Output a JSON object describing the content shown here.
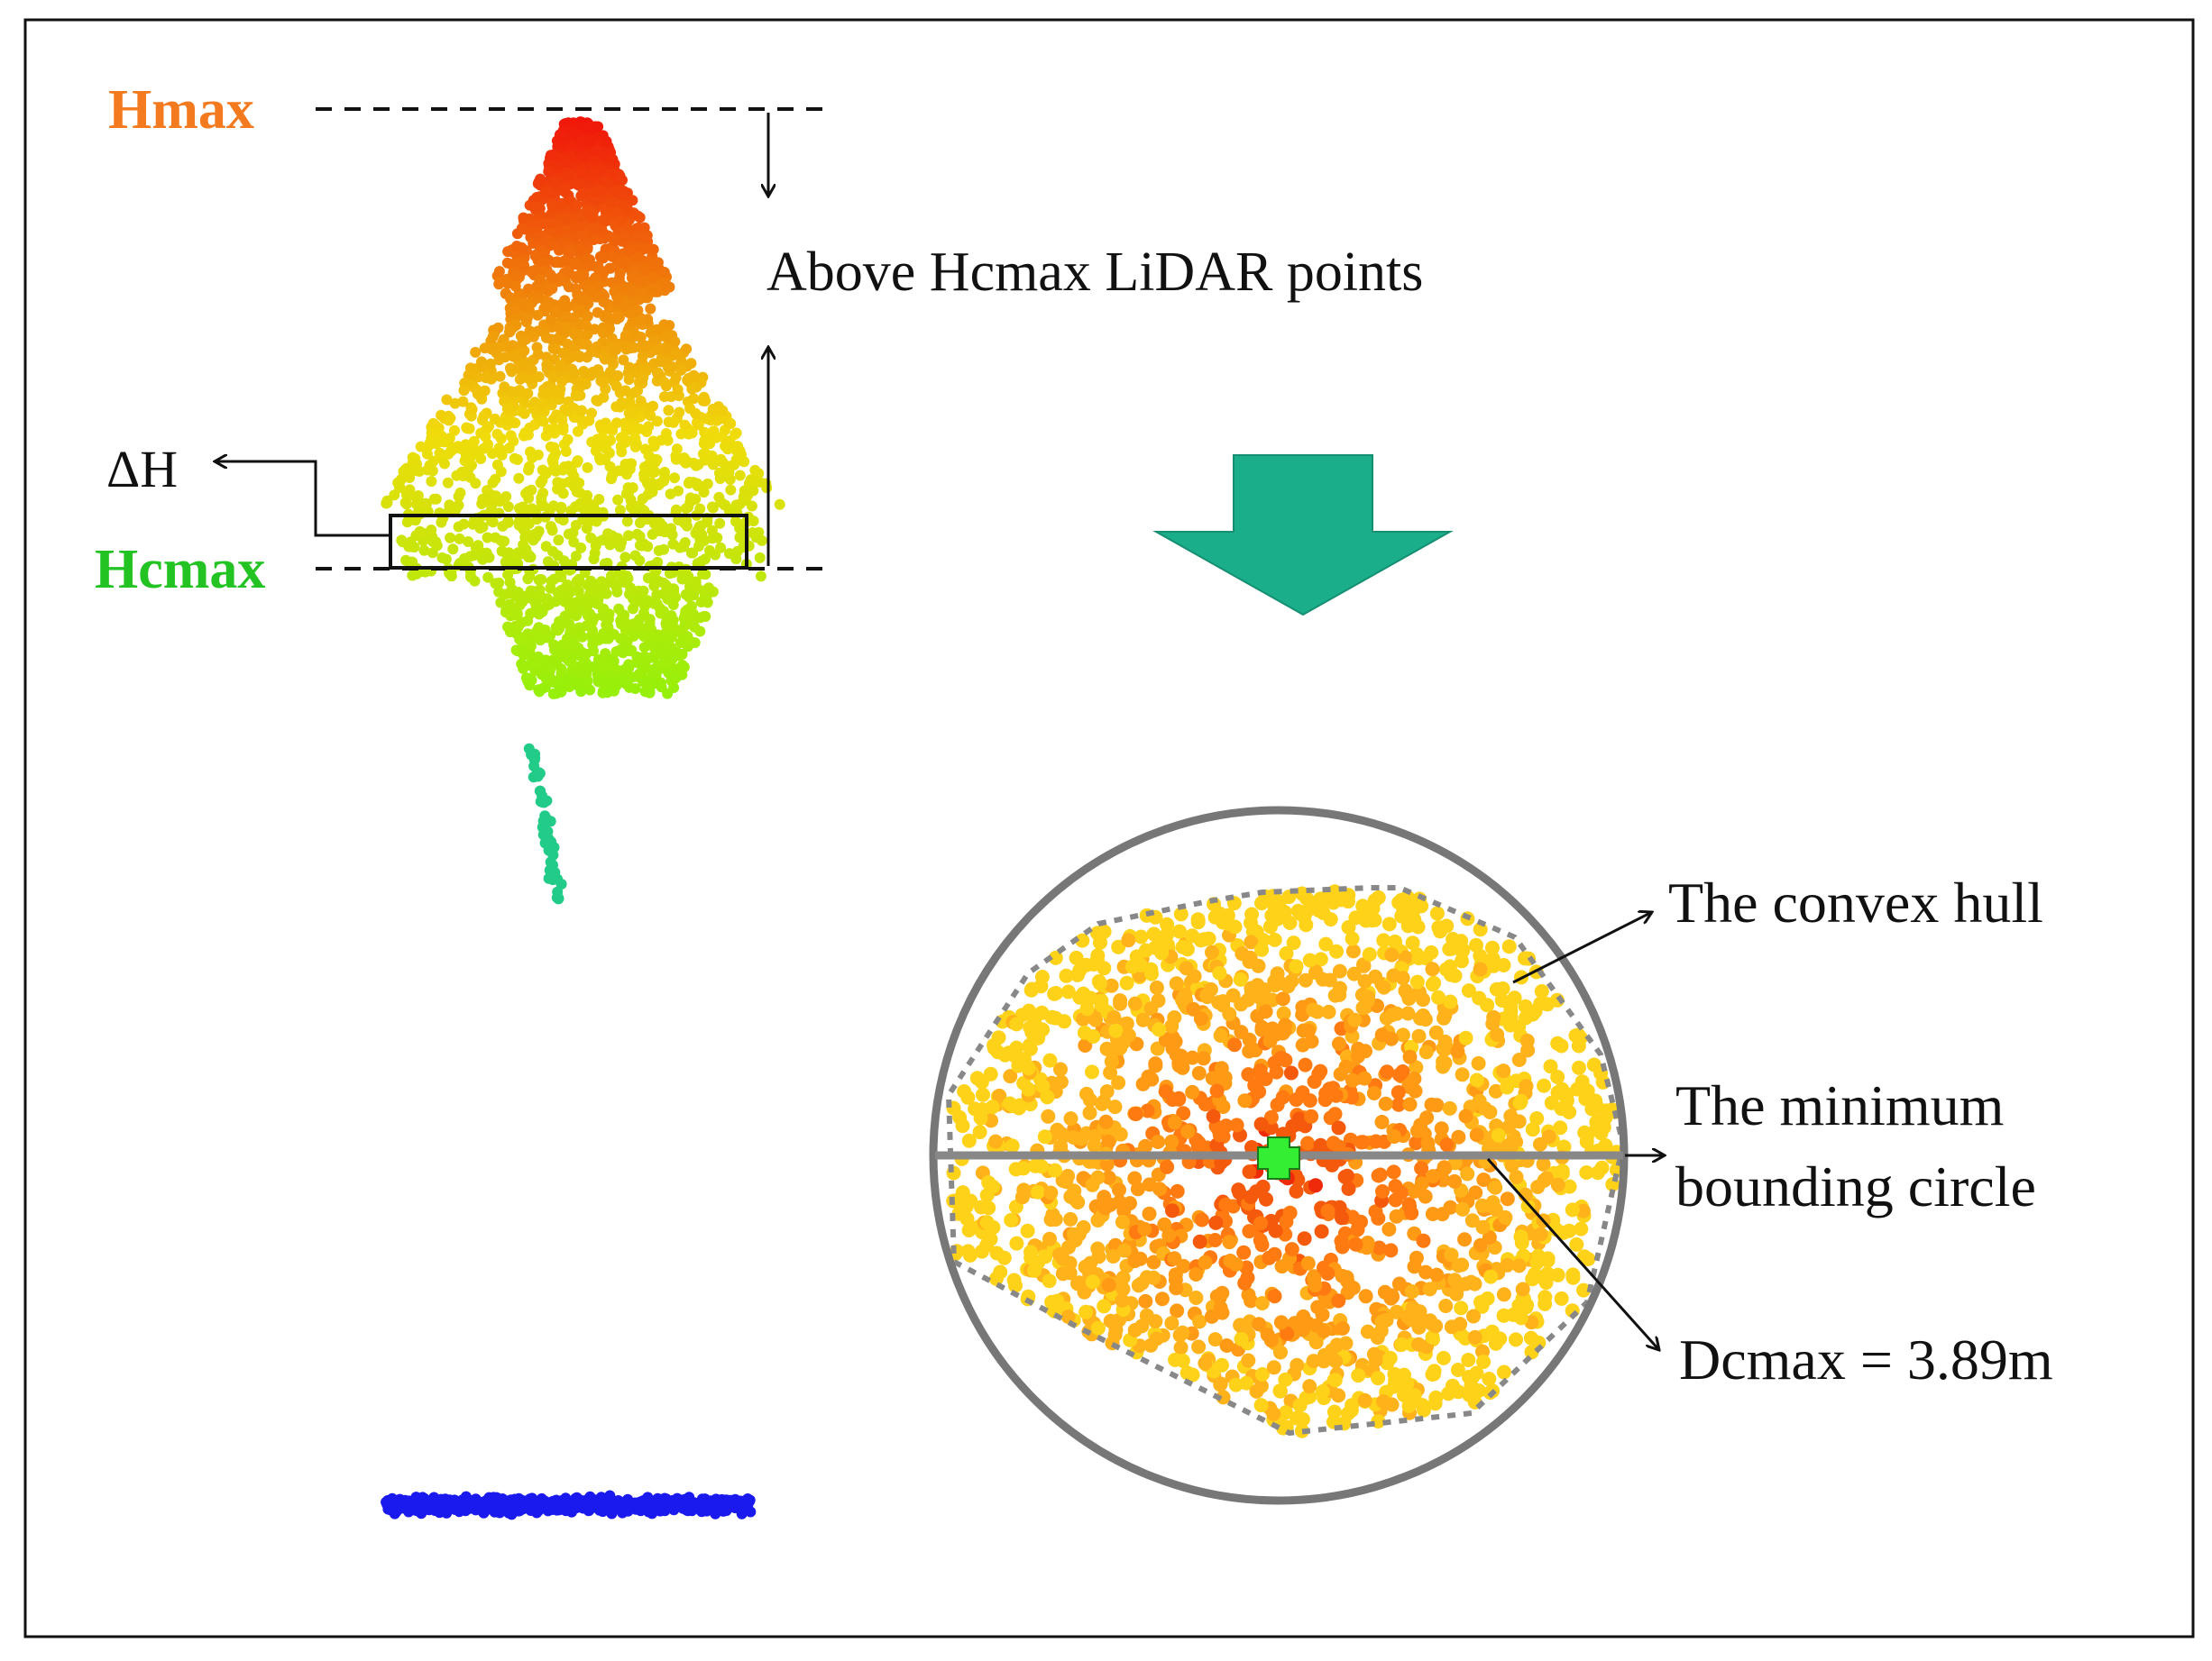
{
  "labels": {
    "hmax": "Hmax",
    "hcmax": "Hcmax",
    "delta_h": "ΔH",
    "above_points": "Above Hcmax LiDAR points",
    "convex_hull": "The convex hull",
    "min_circle_line1": "The minimum",
    "min_circle_line2": "bounding circle",
    "dcmax": "Dcmax = 3.89m"
  },
  "colors": {
    "hmax": "#f47a1f",
    "hcmax": "#22c322",
    "arrow_fill": "#1aae8a",
    "circle": "#777777",
    "hull": "#888888",
    "center_marker": "#33ee33",
    "ground": "#1a1aee",
    "trunk": "#22cc88"
  },
  "icons": {
    "down_arrow": "big-down-arrow-icon",
    "center": "plus-marker-icon"
  }
}
